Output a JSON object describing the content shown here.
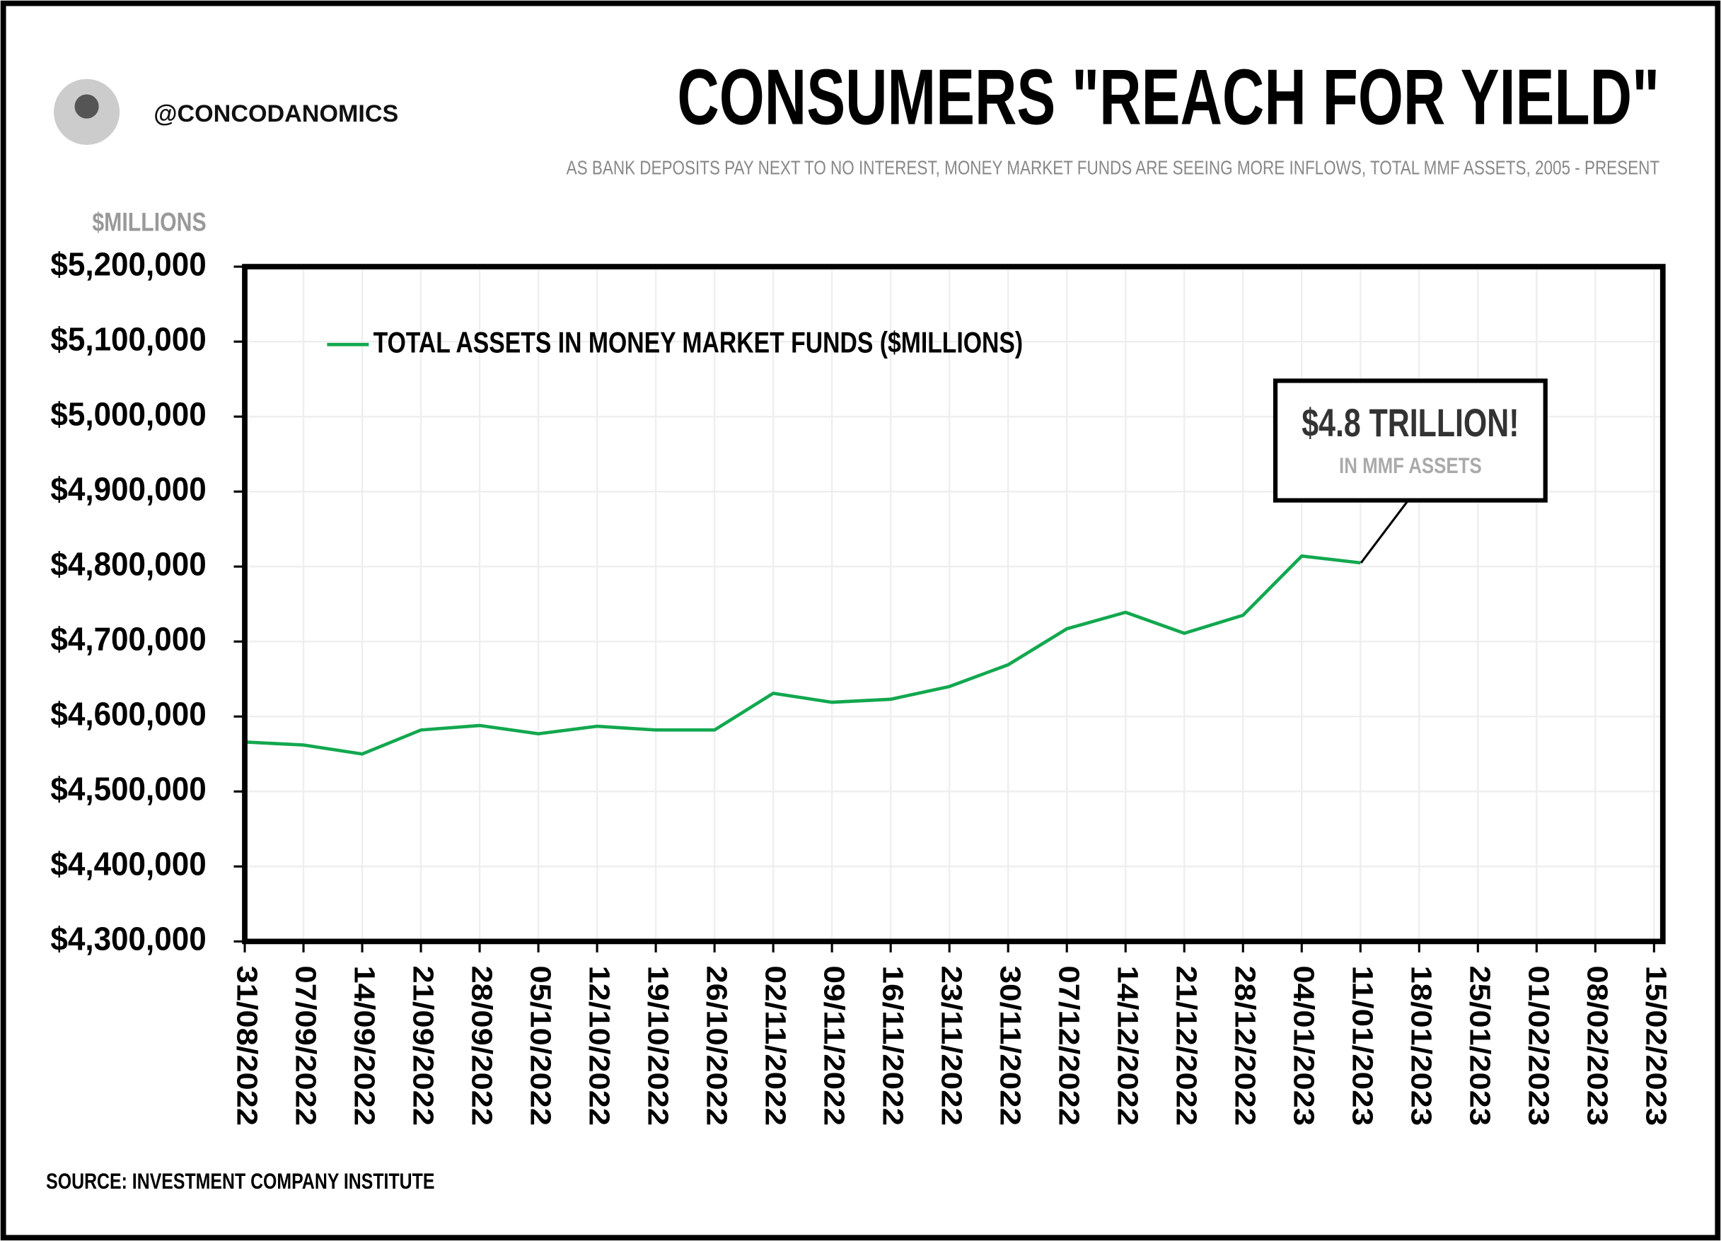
{
  "header": {
    "handle": "@CONCODANOMICS"
  },
  "chart_data": {
    "type": "line",
    "title": "CONSUMERS \"REACH FOR YIELD\"",
    "subtitle": "AS BANK DEPOSITS PAY NEXT TO NO INTEREST, MONEY MARKET FUNDS ARE SEEING MORE INFLOWS, TOTAL MMF ASSETS, 2005 - PRESENT",
    "y_axis_label": "$MILLIONS",
    "source": "SOURCE: INVESTMENT COMPANY INSTITUTE",
    "annotation": {
      "title": "$4.8 TRILLION!",
      "subtitle": "IN MMF ASSETS"
    },
    "categories": [
      "31/08/2022",
      "07/09/2022",
      "14/09/2022",
      "21/09/2022",
      "28/09/2022",
      "05/10/2022",
      "12/10/2022",
      "19/10/2022",
      "26/10/2022",
      "02/11/2022",
      "09/11/2022",
      "16/11/2022",
      "23/11/2022",
      "30/11/2022",
      "07/12/2022",
      "14/12/2022",
      "21/12/2022",
      "28/12/2022",
      "04/01/2023",
      "11/01/2023",
      "18/01/2023",
      "25/01/2023",
      "01/02/2023",
      "08/02/2023",
      "15/02/2023"
    ],
    "series": [
      {
        "name": "TOTAL ASSETS IN MONEY MARKET FUNDS ($MILLIONS)",
        "color": "#12a84f",
        "values": [
          4566000,
          4562000,
          4550000,
          4582000,
          4588000,
          4577000,
          4587000,
          4582000,
          4582000,
          4631000,
          4619000,
          4623000,
          4640000,
          4669000,
          4717000,
          4739000,
          4711000,
          4735000,
          4814000,
          4805000,
          null,
          null,
          null,
          null,
          null
        ]
      }
    ],
    "ylim": [
      4300000,
      5200000
    ],
    "yticks": [
      {
        "value": 4300000,
        "label": "$4,300,000"
      },
      {
        "value": 4400000,
        "label": "$4,400,000"
      },
      {
        "value": 4500000,
        "label": "$4,500,000"
      },
      {
        "value": 4600000,
        "label": "$4,600,000"
      },
      {
        "value": 4700000,
        "label": "$4,700,000"
      },
      {
        "value": 4800000,
        "label": "$4,800,000"
      },
      {
        "value": 4900000,
        "label": "$4,900,000"
      },
      {
        "value": 5000000,
        "label": "$5,000,000"
      },
      {
        "value": 5100000,
        "label": "$5,100,000"
      },
      {
        "value": 5200000,
        "label": "$5,200,000"
      }
    ],
    "grid": true,
    "legend": "top-left"
  }
}
